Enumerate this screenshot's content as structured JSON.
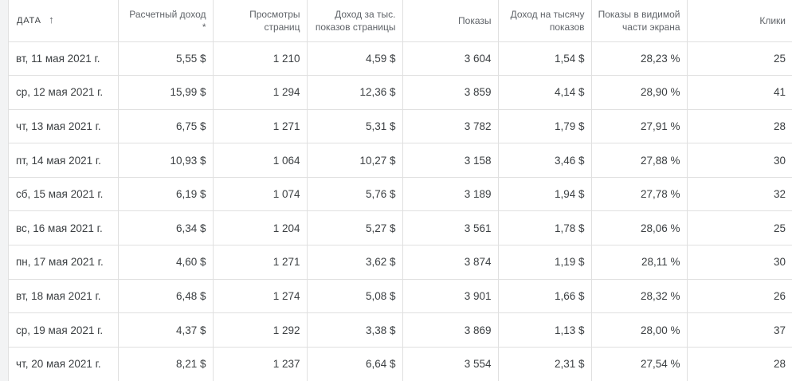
{
  "colors": {
    "row_bg": "#ffffff",
    "gutter_bg": "#f2f3f4",
    "border": "#e0e0e0",
    "header_text": "#5f6368",
    "date_header_text": "#3c4043",
    "cell_text": "#3c4043"
  },
  "icons": {
    "sort_ascending": "↑"
  },
  "table": {
    "columns": [
      {
        "key": "date",
        "label": "ДАТА",
        "align": "left",
        "sorted": "ascending"
      },
      {
        "key": "estimated_income",
        "label": "Расчетный доход *",
        "align": "right"
      },
      {
        "key": "page_views",
        "label": "Просмотры\nстраниц",
        "align": "right"
      },
      {
        "key": "page_rpm",
        "label": "Доход за тыс.\nпоказов страницы",
        "align": "right"
      },
      {
        "key": "impressions",
        "label": "Показы",
        "align": "right"
      },
      {
        "key": "impression_rpm",
        "label": "Доход на тысячу\nпоказов",
        "align": "right"
      },
      {
        "key": "active_view_viewable",
        "label": "Показы в видимой\nчасти экрана",
        "align": "right"
      },
      {
        "key": "clicks",
        "label": "Клики",
        "align": "right"
      }
    ],
    "rows": [
      [
        "вт, 11 мая 2021 г.",
        "5,55 $",
        "1 210",
        "4,59 $",
        "3 604",
        "1,54 $",
        "28,23 %",
        "25"
      ],
      [
        "ср, 12 мая 2021 г.",
        "15,99 $",
        "1 294",
        "12,36 $",
        "3 859",
        "4,14 $",
        "28,90 %",
        "41"
      ],
      [
        "чт, 13 мая 2021 г.",
        "6,75 $",
        "1 271",
        "5,31 $",
        "3 782",
        "1,79 $",
        "27,91 %",
        "28"
      ],
      [
        "пт, 14 мая 2021 г.",
        "10,93 $",
        "1 064",
        "10,27 $",
        "3 158",
        "3,46 $",
        "27,88 %",
        "30"
      ],
      [
        "сб, 15 мая 2021 г.",
        "6,19 $",
        "1 074",
        "5,76 $",
        "3 189",
        "1,94 $",
        "27,78 %",
        "32"
      ],
      [
        "вс, 16 мая 2021 г.",
        "6,34 $",
        "1 204",
        "5,27 $",
        "3 561",
        "1,78 $",
        "28,06 %",
        "25"
      ],
      [
        "пн, 17 мая 2021 г.",
        "4,60 $",
        "1 271",
        "3,62 $",
        "3 874",
        "1,19 $",
        "28,11 %",
        "30"
      ],
      [
        "вт, 18 мая 2021 г.",
        "6,48 $",
        "1 274",
        "5,08 $",
        "3 901",
        "1,66 $",
        "28,32 %",
        "26"
      ],
      [
        "ср, 19 мая 2021 г.",
        "4,37 $",
        "1 292",
        "3,38 $",
        "3 869",
        "1,13 $",
        "28,00 %",
        "37"
      ],
      [
        "чт, 20 мая 2021 г.",
        "8,21 $",
        "1 237",
        "6,64 $",
        "3 554",
        "2,31 $",
        "27,54 %",
        "28"
      ]
    ]
  }
}
